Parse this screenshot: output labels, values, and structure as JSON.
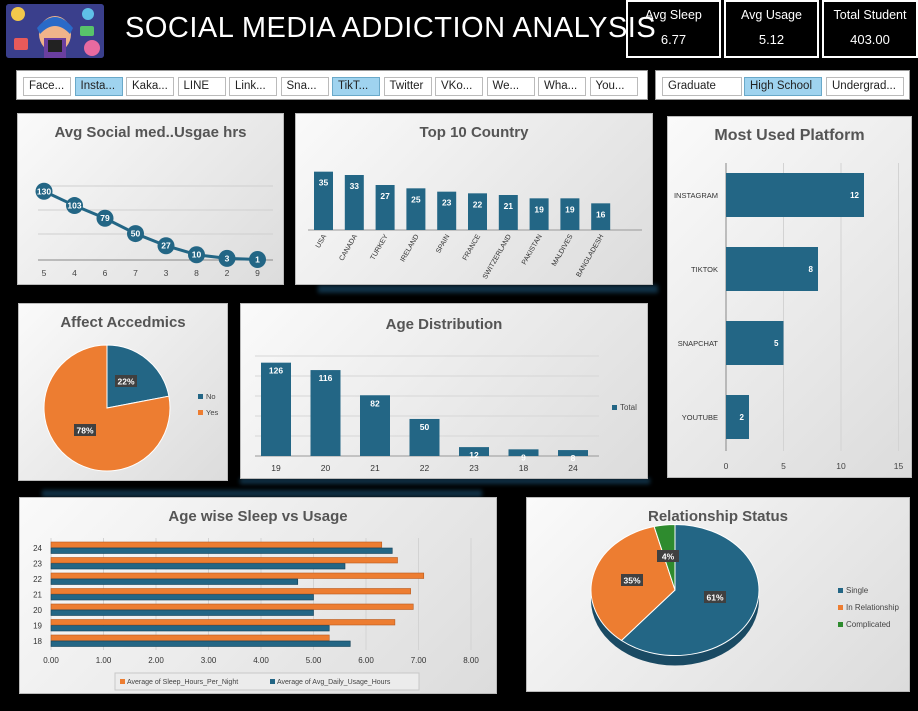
{
  "header": {
    "title": "SOCIAL MEDIA ADDICTION ANALYSIS",
    "kpis": [
      {
        "label": "Avg Sleep",
        "value": "6.77"
      },
      {
        "label": "Avg Usage",
        "value": "5.12"
      },
      {
        "label": "Total Student",
        "value": "403.00"
      }
    ]
  },
  "platform_slicer": {
    "items": [
      "Face...",
      "Insta...",
      "Kaka...",
      "LINE",
      "Link...",
      "Sna...",
      "TikT...",
      "Twitter",
      "VKo...",
      "We...",
      "Wha...",
      "You..."
    ],
    "selected": [
      "Insta...",
      "TikT..."
    ]
  },
  "level_slicer": {
    "items": [
      "Graduate",
      "High School",
      "Undergrad..."
    ],
    "selected": [
      "High School"
    ]
  },
  "colors": {
    "blue": "#236685",
    "orange": "#ed7d31",
    "green": "#2e8b2e"
  },
  "chart_data": [
    {
      "id": "line",
      "type": "line",
      "title": "Avg Social med..Usgae hrs",
      "categories": [
        "5",
        "4",
        "6",
        "7",
        "3",
        "8",
        "2",
        "9"
      ],
      "values": [
        130,
        103,
        79,
        50,
        27,
        10,
        3,
        1
      ]
    },
    {
      "id": "country",
      "type": "bar",
      "title": "Top 10 Country",
      "categories": [
        "USA",
        "CANADA",
        "TURKEY",
        "IRELAND",
        "SPAIN",
        "FRANCE",
        "SWITZERLAND",
        "PAKISTAN",
        "MALDIVES",
        "BANGLADESH"
      ],
      "values": [
        35,
        33,
        27,
        25,
        23,
        22,
        21,
        19,
        19,
        16
      ]
    },
    {
      "id": "platform",
      "type": "bar",
      "title": "Most Used Platform",
      "categories": [
        "INSTAGRAM",
        "TIKTOK",
        "SNAPCHAT",
        "YOUTUBE"
      ],
      "values": [
        12,
        8,
        5,
        2
      ],
      "xticks": [
        "0",
        "5",
        "10",
        "15"
      ],
      "xlim": [
        0,
        15
      ]
    },
    {
      "id": "academic",
      "type": "pie",
      "title": "Affect Accedmics",
      "labels": [
        "No",
        "Yes"
      ],
      "values": [
        22,
        78
      ],
      "value_labels": [
        "22%",
        "78%"
      ]
    },
    {
      "id": "age",
      "type": "bar",
      "title": "Age Distribution",
      "categories": [
        "19",
        "20",
        "21",
        "22",
        "23",
        "18",
        "24"
      ],
      "values": [
        126,
        116,
        82,
        50,
        12,
        9,
        8
      ],
      "legend": "Total"
    },
    {
      "id": "sleep",
      "type": "bar",
      "title": "Age wise Sleep vs Usage",
      "categories": [
        "24",
        "23",
        "22",
        "21",
        "20",
        "19",
        "18"
      ],
      "series": [
        {
          "name": "Average of Sleep_Hours_Per_Night",
          "values": [
            6.3,
            6.6,
            7.1,
            6.85,
            6.9,
            6.55,
            5.3
          ]
        },
        {
          "name": "Average of Avg_Daily_Usage_Hours",
          "values": [
            6.5,
            5.6,
            4.7,
            5.0,
            5.0,
            5.3,
            5.7
          ]
        }
      ],
      "xticks": [
        "0.00",
        "1.00",
        "2.00",
        "3.00",
        "4.00",
        "5.00",
        "6.00",
        "7.00",
        "8.00"
      ],
      "xlim": [
        0,
        8
      ]
    },
    {
      "id": "relationship",
      "type": "pie",
      "title": "Relationship Status",
      "labels": [
        "Single",
        "In Relationship",
        "Complicated"
      ],
      "values": [
        61,
        35,
        4
      ],
      "value_labels": [
        "61%",
        "35%",
        "4%"
      ]
    }
  ]
}
